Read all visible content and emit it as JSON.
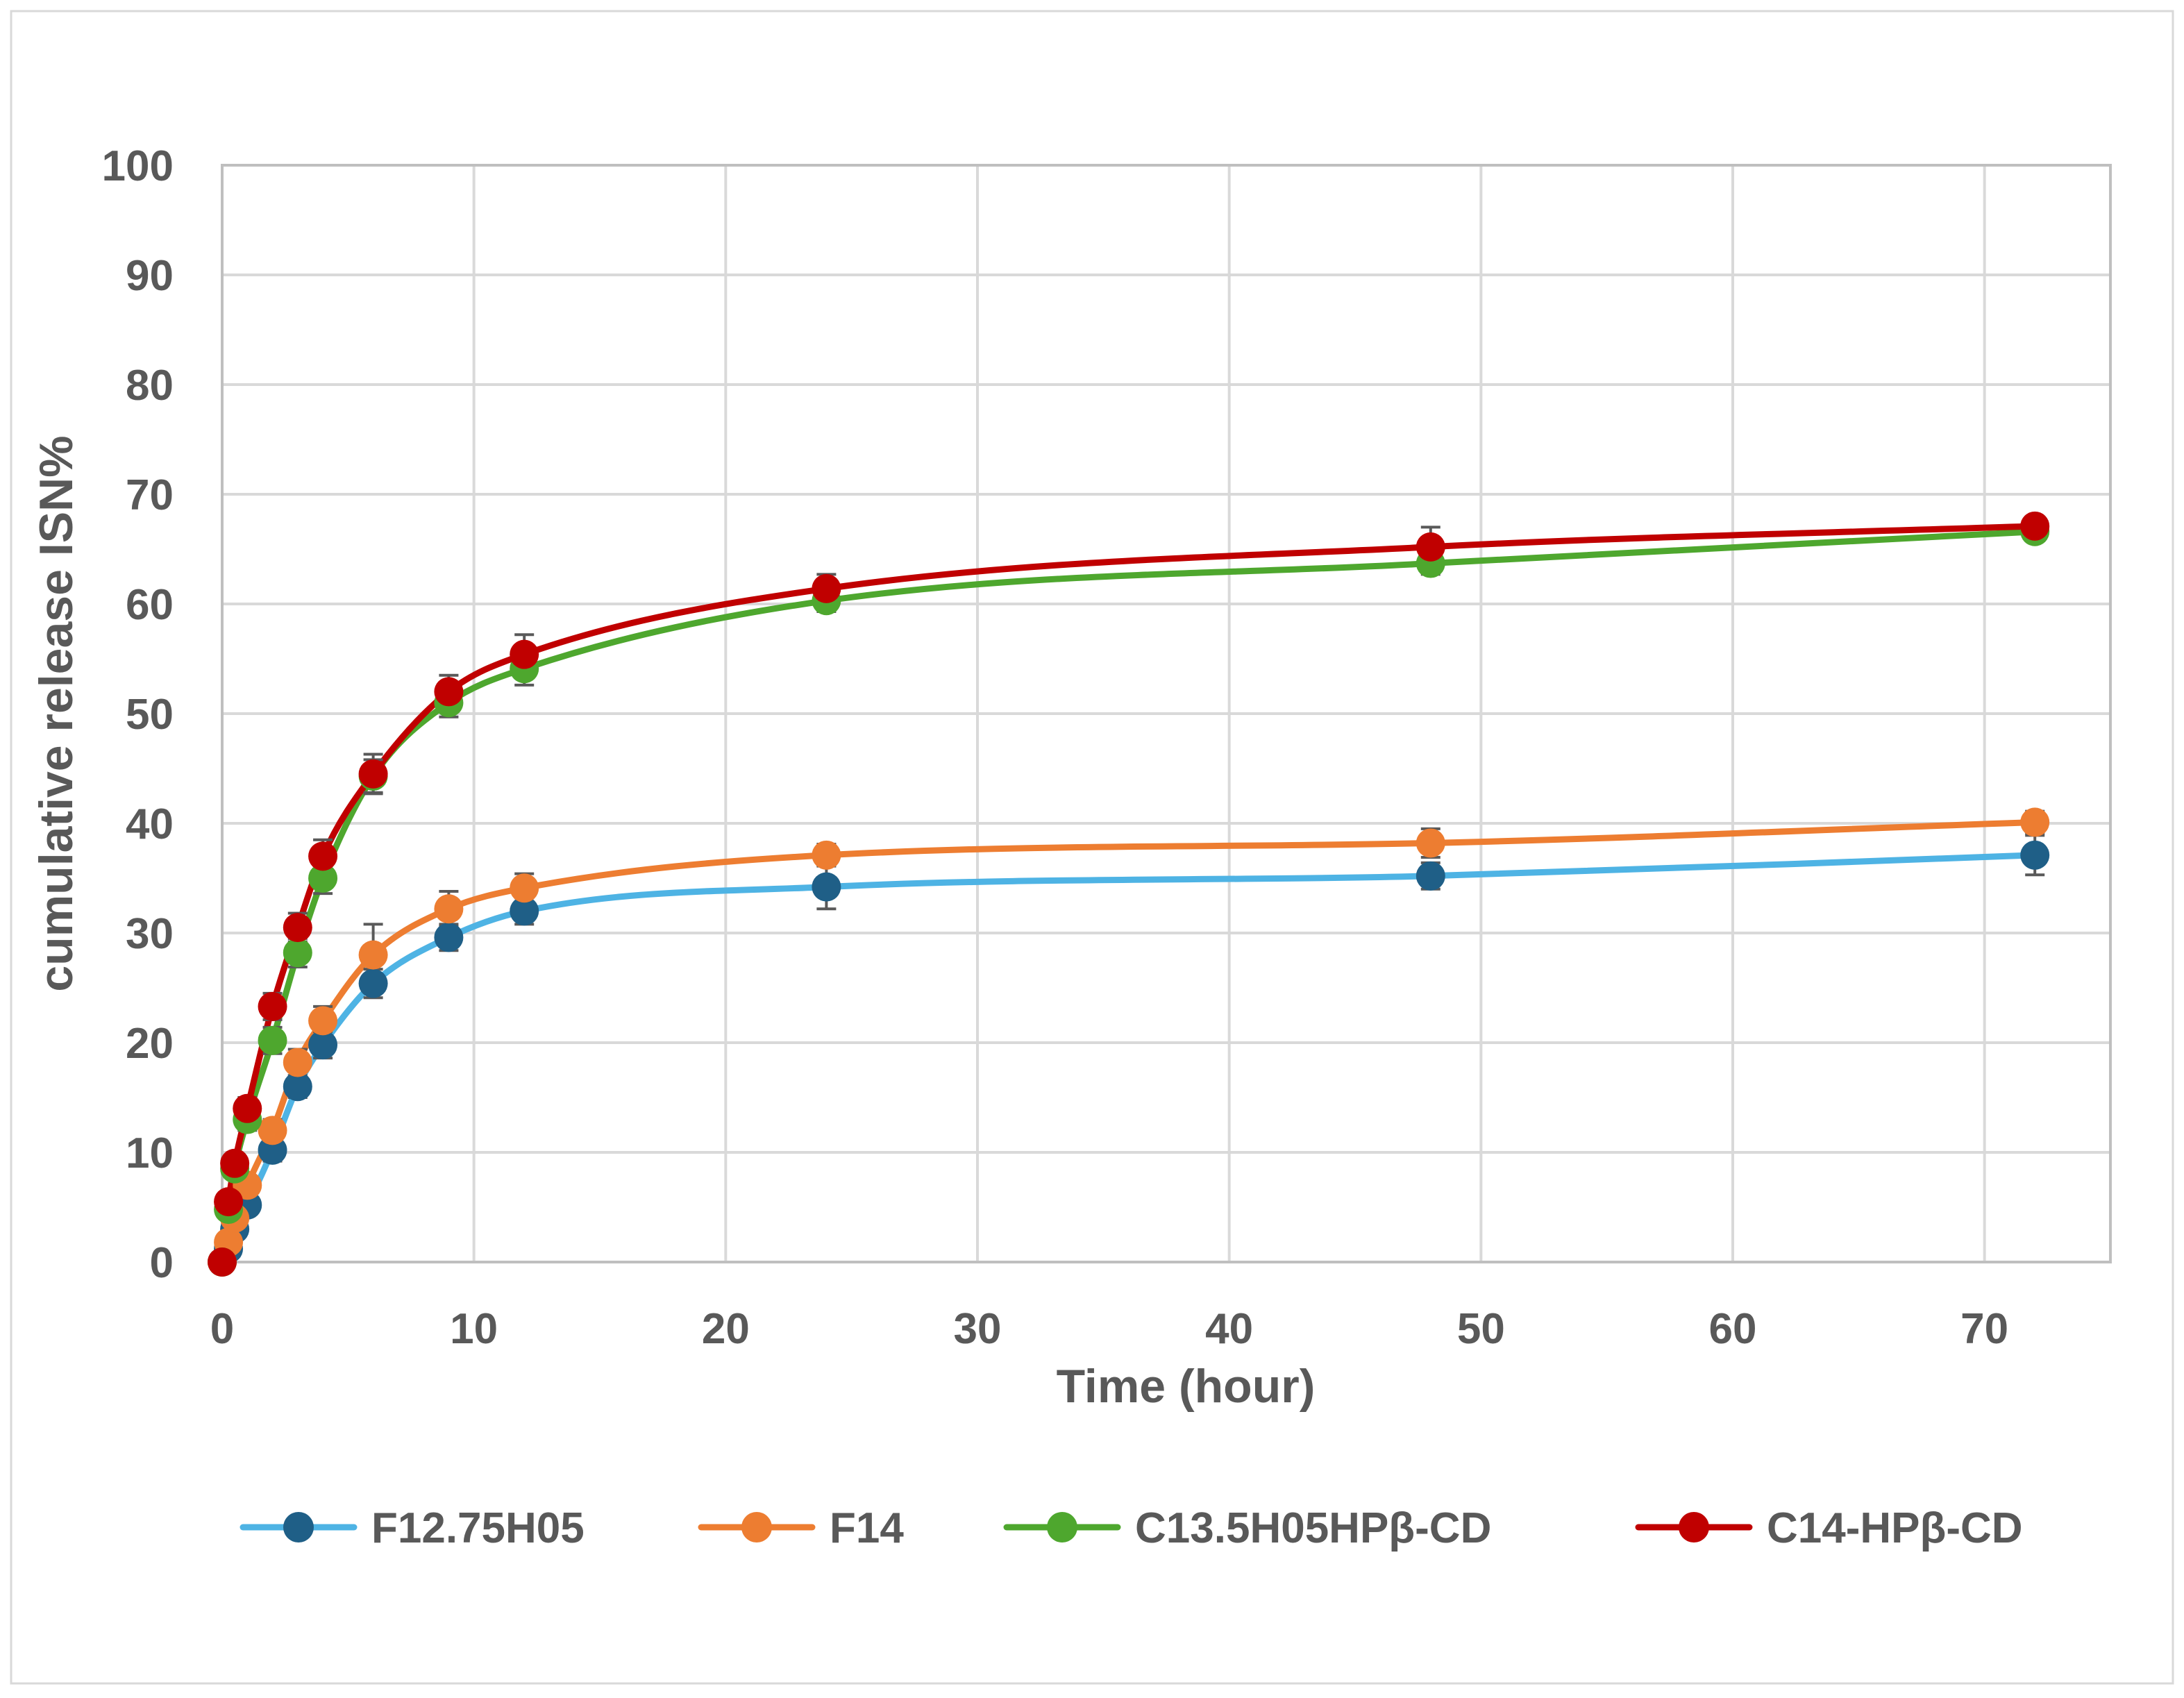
{
  "chart_data": {
    "type": "line",
    "title": "",
    "xlabel": "Time (hour)",
    "ylabel": "cumulative release ISN%",
    "xlim": [
      0,
      75
    ],
    "ylim": [
      0,
      100
    ],
    "xticks": [
      0,
      10,
      20,
      30,
      40,
      50,
      60,
      70
    ],
    "yticks": [
      0,
      10,
      20,
      30,
      40,
      50,
      60,
      70,
      80,
      90,
      100
    ],
    "grid": true,
    "legend_position": "bottom",
    "x": [
      0,
      0.25,
      0.5,
      1,
      2,
      3,
      4,
      6,
      9,
      12,
      24,
      48,
      72
    ],
    "series": [
      {
        "name": "F12.75H05",
        "line_color": "#4EB3E4",
        "marker_color": "#1F5F87",
        "values": [
          0,
          1.2,
          3,
          5.2,
          10.2,
          16,
          19.8,
          25.4,
          29.6,
          32,
          34.2,
          35.2,
          37.1
        ],
        "errors": [
          0,
          0.5,
          0.6,
          0.8,
          1.0,
          1.0,
          1.2,
          1.3,
          1.2,
          1.2,
          2.0,
          1.2,
          1.8
        ]
      },
      {
        "name": "F14",
        "line_color": "#ED7D31",
        "marker_color": "#ED7D31",
        "values": [
          0,
          1.8,
          4,
          7,
          12,
          18.2,
          22,
          28,
          32.2,
          34.1,
          37.1,
          38.2,
          40.1
        ],
        "errors": [
          0,
          0.5,
          0.6,
          0.8,
          1.0,
          1.2,
          1.3,
          2.8,
          1.6,
          1.3,
          1.0,
          1.3,
          1.0
        ]
      },
      {
        "name": "C13.5H05HPβ-CD",
        "line_color": "#4EA72E",
        "marker_color": "#4EA72E",
        "values": [
          0,
          4.8,
          8.5,
          13,
          20.2,
          28.2,
          35,
          44.3,
          51,
          54.1,
          60.3,
          63.7,
          66.6
        ],
        "errors": [
          0,
          0.6,
          0.8,
          1.0,
          1.2,
          1.3,
          1.4,
          1.5,
          1.3,
          1.5,
          1.0,
          1.0,
          0.8
        ]
      },
      {
        "name": "C14-HPβ-CD",
        "line_color": "#C00000",
        "marker_color": "#C00000",
        "values": [
          0,
          5.5,
          9,
          14,
          23.3,
          30.5,
          37,
          44.5,
          52,
          55.4,
          61.4,
          65.2,
          67.1
        ],
        "errors": [
          0,
          0.6,
          0.8,
          1.0,
          1.2,
          1.3,
          1.5,
          1.8,
          1.5,
          1.8,
          1.3,
          1.8,
          0.8
        ]
      }
    ]
  }
}
